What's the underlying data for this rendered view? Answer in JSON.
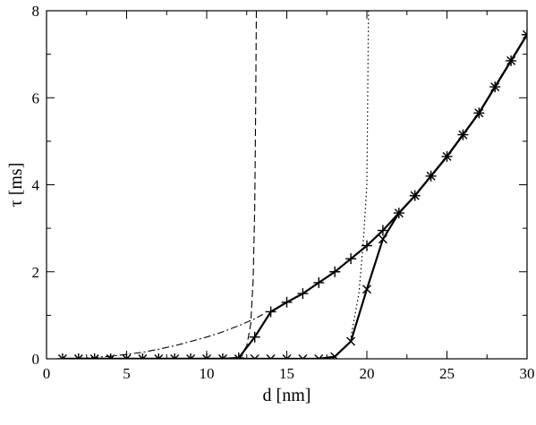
{
  "chart_data": {
    "type": "line",
    "xlabel": "d [nm]",
    "ylabel": "τ [ms]",
    "xlim": [
      0,
      30
    ],
    "ylim": [
      0,
      8
    ],
    "xticks": [
      0,
      5,
      10,
      15,
      20,
      25,
      30
    ],
    "yticks": [
      0,
      2,
      4,
      6,
      8
    ],
    "grid": false,
    "legend": "none",
    "series": [
      {
        "style": "solid",
        "marker": "plus",
        "x": [
          1,
          2,
          3,
          4,
          5,
          6,
          7,
          8,
          9,
          10,
          11,
          12,
          13,
          14,
          15,
          16,
          17,
          18,
          19,
          20,
          21,
          22,
          23,
          24,
          25,
          26,
          27,
          28,
          29,
          30
        ],
        "y": [
          0,
          0,
          0,
          0,
          0,
          0,
          0,
          0,
          0,
          0,
          0,
          0.02,
          0.5,
          1.08,
          1.3,
          1.5,
          1.75,
          2.0,
          2.3,
          2.6,
          2.95,
          3.35,
          3.75,
          4.2,
          4.65,
          5.15,
          5.65,
          6.25,
          6.85,
          7.45
        ]
      },
      {
        "style": "solid",
        "marker": "x",
        "x": [
          1,
          2,
          3,
          4,
          5,
          6,
          7,
          8,
          9,
          10,
          11,
          12,
          13,
          14,
          15,
          16,
          17,
          18,
          19,
          20,
          21,
          22,
          23,
          24,
          25,
          26,
          27,
          28,
          29,
          30
        ],
        "y": [
          0,
          0,
          0,
          0,
          0,
          0,
          0,
          0,
          0,
          0,
          0,
          0,
          0,
          0,
          0,
          0,
          0,
          0.05,
          0.4,
          1.6,
          2.75,
          3.35,
          3.75,
          4.2,
          4.65,
          5.15,
          5.65,
          6.25,
          6.85,
          7.45
        ]
      },
      {
        "style": "dashdot",
        "marker": "none",
        "x": [
          1,
          2,
          3,
          4,
          5,
          6,
          7,
          8,
          9,
          10,
          11,
          12,
          13,
          13.5
        ],
        "y": [
          0,
          0.01,
          0.03,
          0.06,
          0.1,
          0.15,
          0.22,
          0.3,
          0.4,
          0.5,
          0.62,
          0.76,
          0.92,
          1.02
        ]
      },
      {
        "style": "dashed",
        "marker": "none",
        "x": [
          12,
          12.5,
          12.75,
          12.9,
          13.0,
          13.05,
          13.1
        ],
        "y": [
          0,
          0.3,
          0.8,
          1.8,
          3.5,
          5.5,
          8
        ]
      },
      {
        "style": "dotted",
        "marker": "none",
        "x": [
          19,
          19.5,
          19.8,
          20.0,
          20.05,
          20.1
        ],
        "y": [
          0.5,
          1.5,
          2.8,
          4.0,
          6.0,
          8
        ]
      }
    ]
  }
}
